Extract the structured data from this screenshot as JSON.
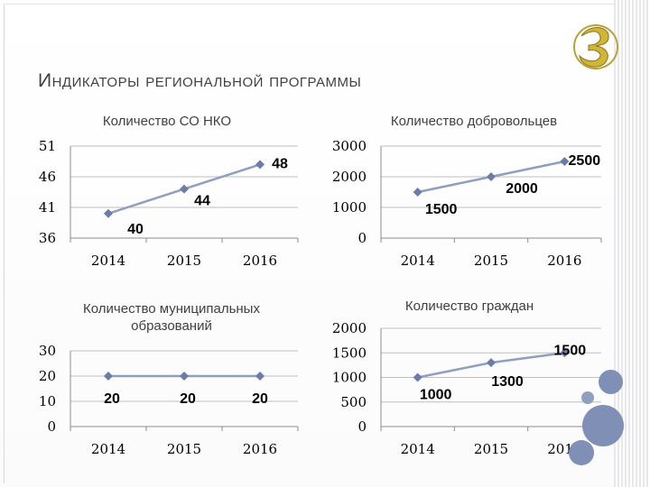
{
  "title": "Индикаторы региональной программы",
  "colors": {
    "line": "#8f9fbf",
    "marker": "#6b7ca8",
    "grid": "#bfbfbf",
    "axis": "#8c8c8c",
    "deco": "#7f8fb5"
  },
  "logo_icon": "stylized-letter-B-logo",
  "chart_data": [
    {
      "type": "line",
      "title": "Количество СО НКО",
      "categories": [
        "2014",
        "2015",
        "2016"
      ],
      "series": [
        {
          "values": [
            40,
            44,
            48
          ]
        }
      ],
      "data_labels": [
        "40",
        "44",
        "48"
      ],
      "yticks": [
        "51",
        "46",
        "41",
        "36"
      ],
      "ylim": [
        36,
        51
      ],
      "grid": true
    },
    {
      "type": "line",
      "title": "Количество добровольцев",
      "categories": [
        "2014",
        "2015",
        "2016"
      ],
      "series": [
        {
          "values": [
            1500,
            2000,
            2500
          ]
        }
      ],
      "data_labels": [
        "1500",
        "2000",
        "2500"
      ],
      "yticks": [
        "3000",
        "2000",
        "1000",
        "0"
      ],
      "ylim": [
        0,
        3000
      ],
      "grid": true
    },
    {
      "type": "line",
      "title": "Количество муниципальных образований",
      "categories": [
        "2014",
        "2015",
        "2016"
      ],
      "series": [
        {
          "values": [
            20,
            20,
            20
          ]
        }
      ],
      "data_labels": [
        "20",
        "20",
        "20"
      ],
      "yticks": [
        "30",
        "20",
        "10",
        "0"
      ],
      "ylim": [
        0,
        30
      ],
      "grid": true
    },
    {
      "type": "line",
      "title": "Количество граждан",
      "categories": [
        "2014",
        "2015",
        "2016"
      ],
      "series": [
        {
          "values": [
            1000,
            1300,
            1500
          ]
        }
      ],
      "data_labels": [
        "1000",
        "1300",
        "1500"
      ],
      "yticks": [
        "2000",
        "1500",
        "1000",
        "500",
        "0"
      ],
      "ylim": [
        0,
        2000
      ],
      "grid": true
    }
  ]
}
